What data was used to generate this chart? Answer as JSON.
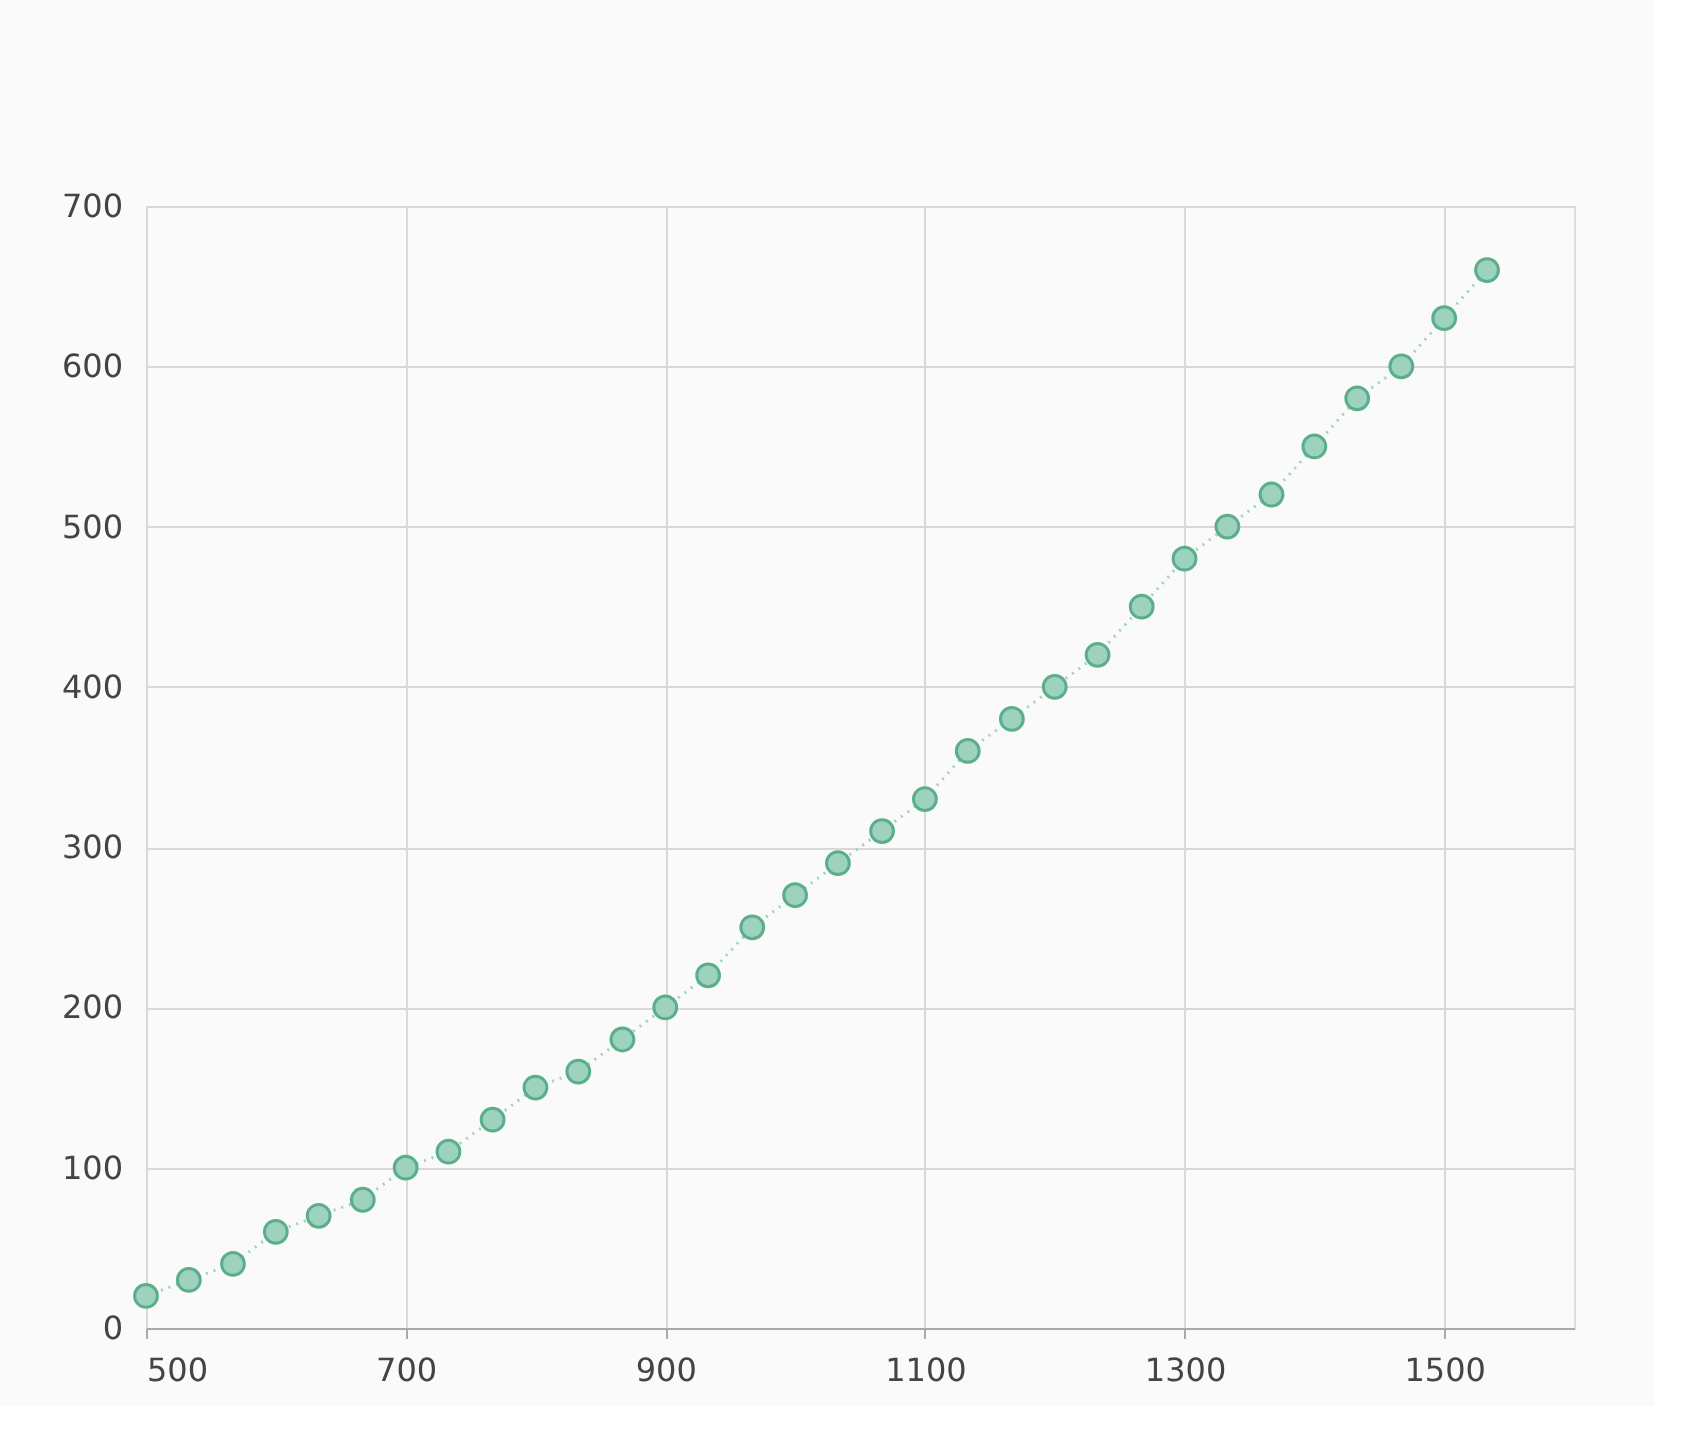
{
  "chart_data": {
    "type": "line",
    "x": [
      500,
      533,
      567,
      600,
      633,
      667,
      700,
      733,
      767,
      800,
      833,
      867,
      900,
      933,
      967,
      1000,
      1033,
      1067,
      1100,
      1133,
      1167,
      1200,
      1233,
      1267,
      1300,
      1333,
      1367,
      1400,
      1433,
      1467,
      1500,
      1533
    ],
    "series": [
      {
        "color": "#9dd3be",
        "values": [
          20,
          30,
          40,
          60,
          70,
          80,
          100,
          110,
          130,
          150,
          160,
          180,
          200,
          220,
          250,
          270,
          290,
          310,
          330,
          360,
          380,
          400,
          420,
          450,
          480,
          500,
          520,
          550,
          580,
          600,
          630,
          660
        ]
      }
    ],
    "xlim": [
      500,
      1600
    ],
    "xticks": [
      500,
      700,
      900,
      1100,
      1300,
      1500
    ],
    "ylim": [
      0,
      700
    ],
    "yticks": [
      0,
      100,
      200,
      300,
      400,
      500,
      600,
      700
    ],
    "grid": true,
    "marker": "circle",
    "line_style": "dotted"
  }
}
